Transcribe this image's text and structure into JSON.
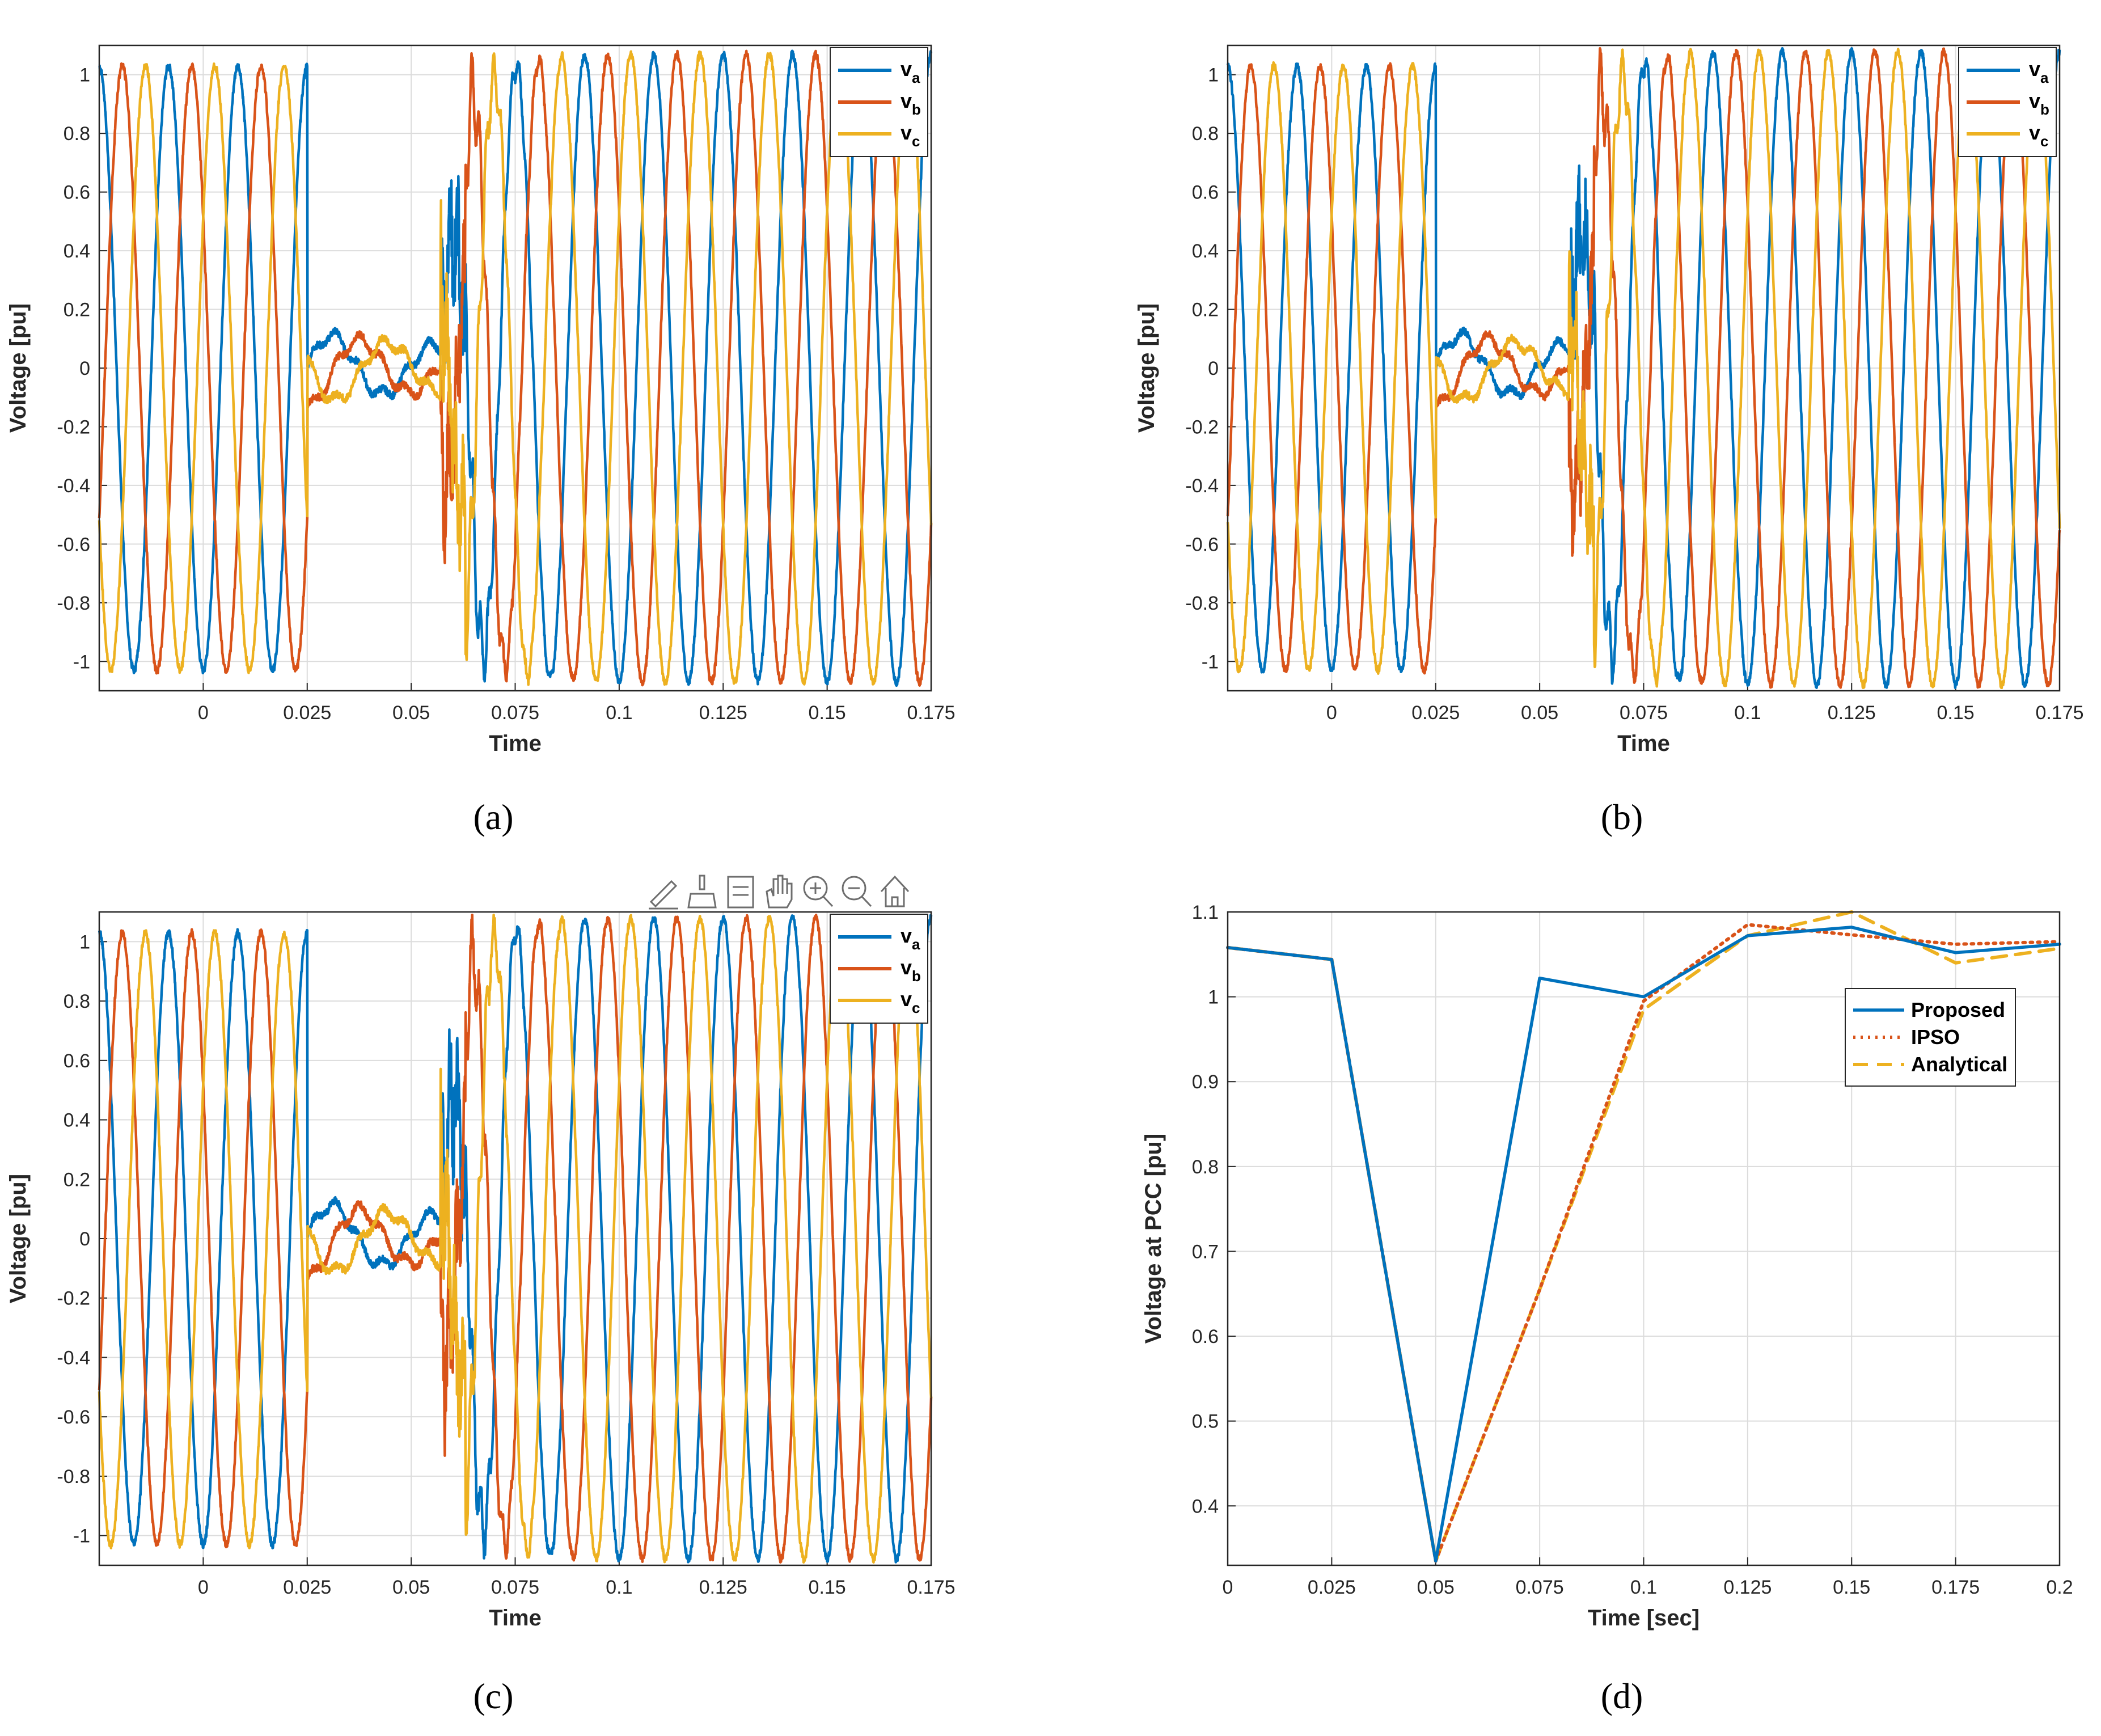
{
  "colors": {
    "a": "#0072bd",
    "b": "#d95319",
    "c": "#edb120",
    "grid": "#dcdcdc",
    "axis": "#262626"
  },
  "waveform_panels": [
    {
      "caption": "(a)",
      "toolbar": false
    },
    {
      "caption": "(b)",
      "toolbar": false
    },
    {
      "caption": "(c)",
      "toolbar": true
    }
  ],
  "toolbar_icons": [
    "edit-icon",
    "brush-icon",
    "legend-icon",
    "pan-hand-icon",
    "zoom-in-icon",
    "zoom-out-icon",
    "home-icon"
  ],
  "chart_data": [
    {
      "panel": "a",
      "type": "line",
      "title": "",
      "xlabel": "Time",
      "ylabel": "Voltage [pu]",
      "xlim": [
        -0.025,
        0.175
      ],
      "ylim": [
        -1.1,
        1.1
      ],
      "xticks": [
        0,
        0.025,
        0.05,
        0.075,
        0.1,
        0.125,
        0.15,
        0.175
      ],
      "xtick_labels": [
        "0",
        "0.025",
        "0.05",
        "0.075",
        "0.1",
        "0.125",
        "0.15",
        "0.175"
      ],
      "yticks": [
        -1,
        -0.8,
        -0.6,
        -0.4,
        -0.2,
        0,
        0.2,
        0.4,
        0.6,
        0.8,
        1
      ],
      "ytick_labels": [
        "-1",
        "-0.8",
        "-0.6",
        "-0.4",
        "-0.2",
        "0",
        "0.2",
        "0.4",
        "0.6",
        "0.8",
        "1"
      ],
      "legend": {
        "position": "top-right",
        "entries": [
          {
            "base": "v",
            "sub": "a"
          },
          {
            "base": "v",
            "sub": "b"
          },
          {
            "base": "v",
            "sub": "c"
          }
        ]
      },
      "series_description": "three-phase 60 Hz sinusoids, amplitude about 1.03 pu before 0.025 s; fault interval 0.025-0.057 s with residual amplitude about 0.13 pu; disturbed recovery 0.057-0.08 s; steady oscillation about 1.07 pu afterwards",
      "series": [
        {
          "name": "va",
          "amplitude_pre": 1.03,
          "amplitude_fault": 0.13,
          "amplitude_post": 1.07,
          "phase_deg": 0
        },
        {
          "name": "vb",
          "amplitude_pre": 1.03,
          "amplitude_fault": 0.13,
          "amplitude_post": 1.07,
          "phase_deg": -120
        },
        {
          "name": "vc",
          "amplitude_pre": 1.03,
          "amplitude_fault": 0.13,
          "amplitude_post": 1.07,
          "phase_deg": 120
        }
      ],
      "fault_start": 0.025,
      "fault_end": 0.057,
      "frequency_hz": 60
    },
    {
      "panel": "b",
      "type": "line",
      "title": "",
      "xlabel": "Time",
      "ylabel": "Voltage [pu]",
      "xlim": [
        -0.025,
        0.175
      ],
      "ylim": [
        -1.1,
        1.1
      ],
      "xticks": [
        0,
        0.025,
        0.05,
        0.075,
        0.1,
        0.125,
        0.15,
        0.175
      ],
      "xtick_labels": [
        "0",
        "0.025",
        "0.05",
        "0.075",
        "0.1",
        "0.125",
        "0.15",
        "0.175"
      ],
      "yticks": [
        -1,
        -0.8,
        -0.6,
        -0.4,
        -0.2,
        0,
        0.2,
        0.4,
        0.6,
        0.8,
        1
      ],
      "ytick_labels": [
        "-1",
        "-0.8",
        "-0.6",
        "-0.4",
        "-0.2",
        "0",
        "0.2",
        "0.4",
        "0.6",
        "0.8",
        "1"
      ],
      "legend": {
        "position": "top-right",
        "entries": [
          {
            "base": "v",
            "sub": "a"
          },
          {
            "base": "v",
            "sub": "b"
          },
          {
            "base": "v",
            "sub": "c"
          }
        ]
      },
      "series": [
        {
          "name": "va",
          "amplitude_pre": 1.03,
          "amplitude_fault": 0.13,
          "amplitude_post": 1.08,
          "phase_deg": 0
        },
        {
          "name": "vb",
          "amplitude_pre": 1.03,
          "amplitude_fault": 0.13,
          "amplitude_post": 1.08,
          "phase_deg": -120
        },
        {
          "name": "vc",
          "amplitude_pre": 1.03,
          "amplitude_fault": 0.13,
          "amplitude_post": 1.08,
          "phase_deg": 120
        }
      ],
      "fault_start": 0.025,
      "fault_end": 0.057,
      "frequency_hz": 60
    },
    {
      "panel": "c",
      "type": "line",
      "title": "",
      "xlabel": "Time",
      "ylabel": "Voltage [pu]",
      "xlim": [
        -0.025,
        0.175
      ],
      "ylim": [
        -1.1,
        1.1
      ],
      "xticks": [
        0,
        0.025,
        0.05,
        0.075,
        0.1,
        0.125,
        0.15,
        0.175
      ],
      "xtick_labels": [
        "0",
        "0.025",
        "0.05",
        "0.075",
        "0.1",
        "0.125",
        "0.15",
        "0.175"
      ],
      "yticks": [
        -1,
        -0.8,
        -0.6,
        -0.4,
        -0.2,
        0,
        0.2,
        0.4,
        0.6,
        0.8,
        1
      ],
      "ytick_labels": [
        "-1",
        "-0.8",
        "-0.6",
        "-0.4",
        "-0.2",
        "0",
        "0.2",
        "0.4",
        "0.6",
        "0.8",
        "1"
      ],
      "legend": {
        "position": "top-right",
        "entries": [
          {
            "base": "v",
            "sub": "a"
          },
          {
            "base": "v",
            "sub": "b"
          },
          {
            "base": "v",
            "sub": "c"
          }
        ]
      },
      "series": [
        {
          "name": "va",
          "amplitude_pre": 1.03,
          "amplitude_fault": 0.13,
          "amplitude_post": 1.08,
          "phase_deg": 0
        },
        {
          "name": "vb",
          "amplitude_pre": 1.03,
          "amplitude_fault": 0.13,
          "amplitude_post": 1.08,
          "phase_deg": -120
        },
        {
          "name": "vc",
          "amplitude_pre": 1.03,
          "amplitude_fault": 0.13,
          "amplitude_post": 1.08,
          "phase_deg": 120
        }
      ],
      "fault_start": 0.025,
      "fault_end": 0.057,
      "frequency_hz": 60
    },
    {
      "panel": "d",
      "type": "line",
      "title": "",
      "xlabel": "Time [sec]",
      "ylabel": "Voltage at PCC [pu]",
      "xlim": [
        0,
        0.2
      ],
      "ylim": [
        0.33,
        1.1
      ],
      "xticks": [
        0,
        0.025,
        0.05,
        0.075,
        0.1,
        0.125,
        0.15,
        0.175,
        0.2
      ],
      "xtick_labels": [
        "0",
        "0.025",
        "0.05",
        "0.075",
        "0.1",
        "0.125",
        "0.15",
        "0.175",
        "0.2"
      ],
      "yticks": [
        0.4,
        0.5,
        0.6,
        0.7,
        0.8,
        0.9,
        1,
        1.1
      ],
      "ytick_labels": [
        "0.4",
        "0.5",
        "0.6",
        "0.7",
        "0.8",
        "0.9",
        "1",
        "1.1"
      ],
      "legend": {
        "position": "upper-right",
        "entries": [
          "Proposed",
          "IPSO",
          "Analytical"
        ]
      },
      "x": [
        0,
        0.025,
        0.05,
        0.075,
        0.1,
        0.125,
        0.15,
        0.175,
        0.2
      ],
      "series": [
        {
          "name": "Proposed",
          "style": "solid",
          "values": [
            1.058,
            1.044,
            0.335,
            1.022,
            1.0,
            1.072,
            1.082,
            1.052,
            1.062
          ]
        },
        {
          "name": "IPSO",
          "style": "dotted",
          "values": [
            1.058,
            1.044,
            0.335,
            0.655,
            0.995,
            1.085,
            1.073,
            1.062,
            1.065
          ]
        },
        {
          "name": "Analytical",
          "style": "dashed",
          "values": [
            1.058,
            1.044,
            0.335,
            0.655,
            0.985,
            1.072,
            1.1,
            1.04,
            1.057
          ]
        }
      ]
    }
  ],
  "captions": [
    "(a)",
    "(b)",
    "(c)",
    "(d)"
  ]
}
